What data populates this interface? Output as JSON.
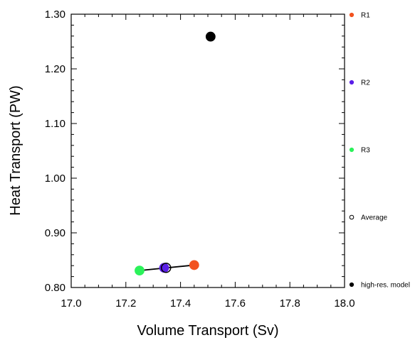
{
  "chart_data": {
    "type": "scatter",
    "xlabel": "Volume Transport (Sv)",
    "ylabel": "Heat Transport (PW)",
    "xlim": [
      17.0,
      18.0
    ],
    "ylim": [
      0.8,
      1.3
    ],
    "x_ticks": [
      "17.0",
      "17.2",
      "17.4",
      "17.6",
      "17.8",
      "18.0"
    ],
    "y_ticks": [
      "0.80",
      "0.90",
      "1.00",
      "1.10",
      "1.20",
      "1.30"
    ],
    "grid": false,
    "legend_position": "right",
    "series": [
      {
        "name": "R1",
        "x": 17.45,
        "y": 0.841,
        "color": "#f2521f",
        "marker": "filled-circle"
      },
      {
        "name": "R2",
        "x": 17.34,
        "y": 0.836,
        "color": "#5a1ee8",
        "marker": "filled-circle"
      },
      {
        "name": "R3",
        "x": 17.25,
        "y": 0.831,
        "color": "#2bf25a",
        "marker": "filled-circle"
      },
      {
        "name": "Average",
        "x": 17.347,
        "y": 0.836,
        "color": "#000000",
        "marker": "open-circle"
      },
      {
        "name": "high-res. model",
        "x": 17.51,
        "y": 1.259,
        "color": "#000000",
        "marker": "filled-circle"
      }
    ],
    "trend_line": {
      "x": [
        17.25,
        17.45
      ],
      "y": [
        0.831,
        0.841
      ],
      "color": "#000000"
    }
  }
}
